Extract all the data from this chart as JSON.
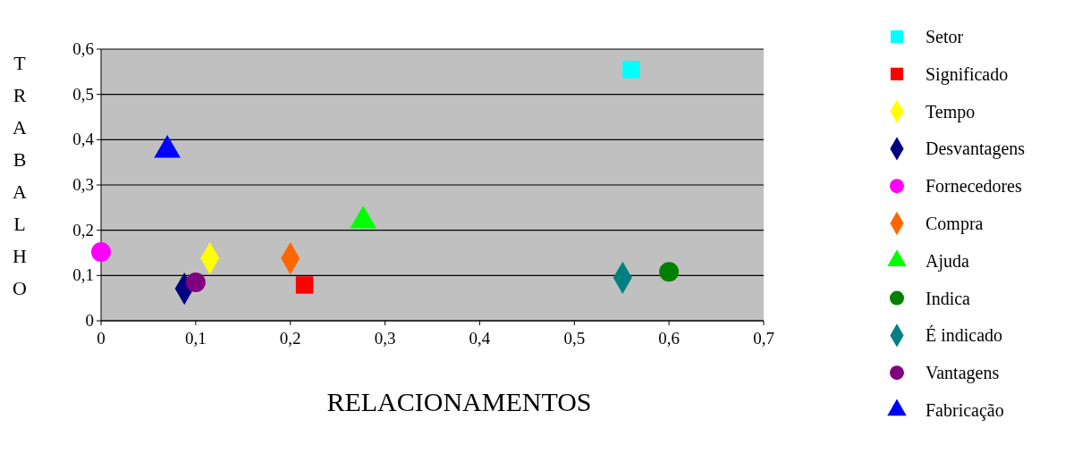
{
  "chart_data": {
    "type": "scatter",
    "xlabel": "RELACIONAMENTOS",
    "ylabel": "TRABALHO",
    "xlim": [
      0,
      0.7
    ],
    "ylim": [
      0,
      0.6
    ],
    "xticks": [
      0,
      {
        "value": 0.1,
        "label": "0,1"
      },
      {
        "value": 0.2,
        "label": "0,2"
      },
      {
        "value": 0.3,
        "label": "0,3"
      },
      {
        "value": 0.4,
        "label": "0,4"
      },
      {
        "value": 0.5,
        "label": "0,5"
      },
      {
        "value": 0.6,
        "label": "0,6"
      },
      {
        "value": 0.7,
        "label": "0,7"
      }
    ],
    "yticks": [
      0,
      {
        "value": 0.1,
        "label": "0,1"
      },
      {
        "value": 0.2,
        "label": "0,2"
      },
      {
        "value": 0.3,
        "label": "0,3"
      },
      {
        "value": 0.4,
        "label": "0,4"
      },
      {
        "value": 0.5,
        "label": "0,5"
      },
      {
        "value": 0.6,
        "label": "0,6"
      }
    ],
    "grid": "y",
    "legend": "right",
    "series": [
      {
        "name": "Setor",
        "color": "#00ffff",
        "marker": "square",
        "x": [
          0.56
        ],
        "values": [
          0.555
        ]
      },
      {
        "name": "Significado",
        "color": "#ff0000",
        "marker": "square",
        "x": [
          0.215
        ],
        "values": [
          0.079
        ]
      },
      {
        "name": "Tempo",
        "color": "#ffff00",
        "marker": "diamond",
        "x": [
          0.115
        ],
        "values": [
          0.138
        ]
      },
      {
        "name": "Desvantagens",
        "color": "#000080",
        "marker": "diamond",
        "x": [
          0.088
        ],
        "values": [
          0.071
        ]
      },
      {
        "name": "Fornecedores",
        "color": "#ff00ff",
        "marker": "circle",
        "x": [
          0
        ],
        "values": [
          0.152
        ]
      },
      {
        "name": "Compra",
        "color": "#ff6600",
        "marker": "diamond",
        "x": [
          0.2
        ],
        "values": [
          0.138
        ]
      },
      {
        "name": "Ajuda",
        "color": "#00ff00",
        "marker": "triangle",
        "x": [
          0.277
        ],
        "values": [
          0.221
        ]
      },
      {
        "name": "Indica",
        "color": "#008000",
        "marker": "circle",
        "x": [
          0.6
        ],
        "values": [
          0.108
        ]
      },
      {
        "name": "É indicado",
        "color": "#008080",
        "marker": "diamond",
        "x": [
          0.551
        ],
        "values": [
          0.095
        ]
      },
      {
        "name": "Vantagens",
        "color": "#800080",
        "marker": "circle",
        "x": [
          0.1
        ],
        "values": [
          0.085
        ]
      },
      {
        "name": "Fabricação",
        "color": "#0000ff",
        "marker": "triangle",
        "x": [
          0.07
        ],
        "values": [
          0.377
        ]
      }
    ]
  }
}
